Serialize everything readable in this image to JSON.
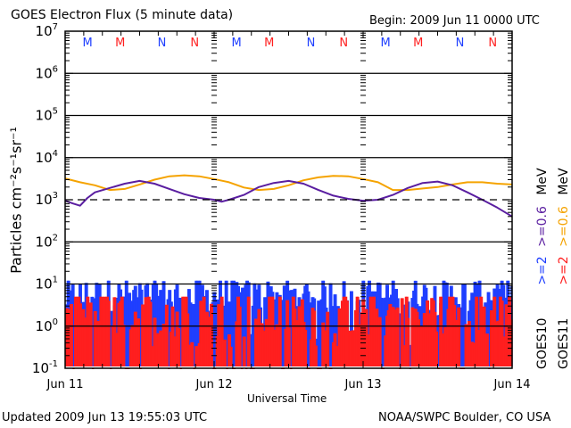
{
  "chart_data": {
    "type": "line",
    "title": "GOES Electron Flux (5 minute data)",
    "begin_label": "Begin: 2009 Jun 11 0000 UTC",
    "xlabel": "Universal Time",
    "ylabel": "Particles cm⁻²s⁻¹sr⁻¹",
    "y_scale": "log",
    "ylim": [
      0.1,
      10000000
    ],
    "y_ticks": [
      {
        "base": "10",
        "exp": "-1"
      },
      {
        "base": "10",
        "exp": "0"
      },
      {
        "base": "10",
        "exp": "1"
      },
      {
        "base": "10",
        "exp": "2"
      },
      {
        "base": "10",
        "exp": "3"
      },
      {
        "base": "10",
        "exp": "4"
      },
      {
        "base": "10",
        "exp": "5"
      },
      {
        "base": "10",
        "exp": "6"
      },
      {
        "base": "10",
        "exp": "7"
      }
    ],
    "x_range_days": [
      0,
      3
    ],
    "x_ticks": [
      "Jun 11",
      "Jun 12",
      "Jun 13",
      "Jun 14"
    ],
    "threshold_line": {
      "value": 1000,
      "style": "dashed"
    },
    "grid": "horizontal lines at 10^0, 10^1, 10^2, 10^4, 10^5, 10^6",
    "top_markers": [
      {
        "label": "M",
        "day": 0.15,
        "color": "#1f3fff"
      },
      {
        "label": "M",
        "day": 0.37,
        "color": "#ff1f1f"
      },
      {
        "label": "N",
        "day": 0.65,
        "color": "#1f3fff"
      },
      {
        "label": "N",
        "day": 0.87,
        "color": "#ff1f1f"
      },
      {
        "label": "M",
        "day": 1.15,
        "color": "#1f3fff"
      },
      {
        "label": "M",
        "day": 1.37,
        "color": "#ff1f1f"
      },
      {
        "label": "N",
        "day": 1.65,
        "color": "#1f3fff"
      },
      {
        "label": "N",
        "day": 1.87,
        "color": "#ff1f1f"
      },
      {
        "label": "M",
        "day": 2.15,
        "color": "#1f3fff"
      },
      {
        "label": "M",
        "day": 2.37,
        "color": "#ff1f1f"
      },
      {
        "label": "N",
        "day": 2.65,
        "color": "#1f3fff"
      },
      {
        "label": "N",
        "day": 2.87,
        "color": "#ff1f1f"
      }
    ],
    "legend_placement": "right (vertical text)",
    "series": [
      {
        "name": "GOES11 >=0.6 MeV",
        "color": "#f5a300",
        "x_days": [
          0,
          0.1,
          0.2,
          0.3,
          0.4,
          0.5,
          0.6,
          0.7,
          0.8,
          0.9,
          1.0,
          1.1,
          1.2,
          1.3,
          1.4,
          1.5,
          1.6,
          1.7,
          1.8,
          1.9,
          2.0,
          2.1,
          2.2,
          2.3,
          2.4,
          2.5,
          2.6,
          2.7,
          2.8,
          2.9,
          3.0
        ],
        "values": [
          3200,
          2600,
          2200,
          1700,
          1800,
          2300,
          3000,
          3600,
          3800,
          3600,
          3100,
          2600,
          1950,
          1700,
          1800,
          2200,
          2900,
          3400,
          3700,
          3600,
          3100,
          2600,
          1700,
          1700,
          1850,
          2000,
          2300,
          2600,
          2600,
          2400,
          2300
        ]
      },
      {
        "name": "GOES10 >=0.6 MeV",
        "color": "#5a1ea0",
        "x_days": [
          0,
          0.05,
          0.1,
          0.15,
          0.2,
          0.3,
          0.4,
          0.5,
          0.6,
          0.7,
          0.8,
          0.9,
          1.0,
          1.05,
          1.1,
          1.2,
          1.3,
          1.4,
          1.5,
          1.6,
          1.7,
          1.8,
          1.9,
          2.0,
          2.1,
          2.2,
          2.3,
          2.4,
          2.5,
          2.6,
          2.7,
          2.8,
          2.9,
          3.0
        ],
        "values": [
          950,
          820,
          720,
          1100,
          1500,
          1900,
          2400,
          2800,
          2400,
          1800,
          1350,
          1100,
          1000,
          900,
          1000,
          1300,
          2000,
          2500,
          2800,
          2400,
          1700,
          1250,
          1050,
          950,
          1000,
          1300,
          1900,
          2500,
          2700,
          2200,
          1500,
          1000,
          650,
          400
        ]
      },
      {
        "name": "GOES10 >=2 MeV",
        "color": "#1f3fff",
        "style": "noisy",
        "range": [
          0.1,
          12
        ],
        "typical": 4
      },
      {
        "name": "GOES11 >=2 MeV",
        "color": "#ff1f1f",
        "style": "noisy",
        "range": [
          0.1,
          5
        ],
        "typical": 1
      }
    ]
  },
  "legend": {
    "goes10": "GOES10",
    "goes11": "GOES11",
    "goes10_2mev": ">=2",
    "goes10_06mev": ">=0.6",
    "goes11_2mev": ">=2",
    "goes11_06mev": ">=0.6",
    "unit1": "MeV",
    "unit2": "MeV",
    "color_blue": "#1f3fff",
    "color_red": "#ff1f1f",
    "color_purple": "#5a1ea0",
    "color_orange": "#f5a300"
  },
  "footer": {
    "updated": "Updated 2009 Jun 13 19:55:03 UTC",
    "credit": "NOAA/SWPC Boulder, CO USA"
  }
}
